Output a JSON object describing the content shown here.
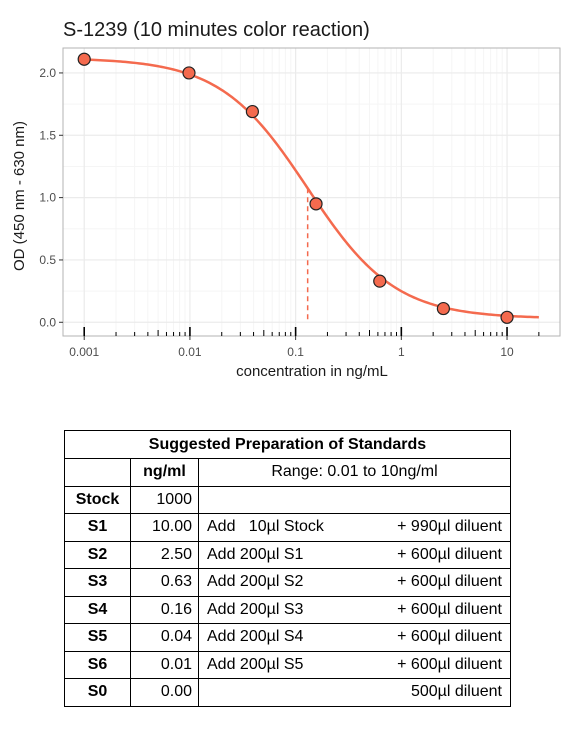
{
  "chart_data": {
    "type": "scatter",
    "title": "S-1239 (10 minutes color reaction)",
    "xlabel": "concentration in ng/mL",
    "ylabel": "OD (450 nm - 630 nm)",
    "x_scale": "log",
    "xlim": [
      0.001,
      20
    ],
    "ylim": [
      0,
      2.2
    ],
    "x_ticks": [
      0.001,
      0.01,
      0.1,
      1,
      10
    ],
    "x_tick_labels": [
      "0.001",
      "0.01",
      "0.1",
      "1",
      "10"
    ],
    "y_ticks": [
      0,
      0.5,
      1,
      1.5,
      2
    ],
    "y_tick_labels": [
      "0.0",
      "0.5",
      "1.0",
      "1.5",
      "2.0"
    ],
    "grid": true,
    "legend": "none",
    "points": {
      "x": [
        0.001,
        0.0098,
        0.039,
        0.156,
        0.625,
        2.5,
        10
      ],
      "y": [
        2.11,
        2.0,
        1.69,
        0.95,
        0.33,
        0.11,
        0.04
      ]
    },
    "curve": {
      "type": "4PL",
      "bottom": 0.03,
      "top": 2.12,
      "ec50": 0.13,
      "hill": 1.05,
      "x_range": [
        0.001,
        20
      ]
    },
    "reference_line": {
      "x": 0.13,
      "style": "dashed",
      "to_curve": true
    },
    "colors": {
      "curve": "#f46a4e",
      "point_fill": "#f46a4e",
      "point_stroke": "#222222",
      "reference": "#f46a4e",
      "grid_major": "#ebebeb",
      "grid_minor": "#f5f5f5",
      "panel_border": "#b3b3b3"
    }
  },
  "table": {
    "title": "Suggested Preparation of Standards",
    "header": {
      "conc": "ng/ml",
      "range": "Range: 0.01 to 10ng/ml"
    },
    "rows": [
      {
        "label": "Stock",
        "conc": "1000",
        "prep": "",
        "diluent": ""
      },
      {
        "label": "S1",
        "conc": "10.00",
        "prep": "Add   10µl Stock",
        "diluent": "+ 990µl diluent"
      },
      {
        "label": "S2",
        "conc": "2.50",
        "prep": "Add 200µl S1",
        "diluent": "+ 600µl diluent"
      },
      {
        "label": "S3",
        "conc": "0.63",
        "prep": "Add 200µl S2",
        "diluent": "+ 600µl diluent"
      },
      {
        "label": "S4",
        "conc": "0.16",
        "prep": "Add 200µl S3",
        "diluent": "+ 600µl diluent"
      },
      {
        "label": "S5",
        "conc": "0.04",
        "prep": "Add 200µl S4",
        "diluent": "+ 600µl diluent"
      },
      {
        "label": "S6",
        "conc": "0.01",
        "prep": "Add 200µl S5",
        "diluent": "+ 600µl diluent"
      },
      {
        "label": "S0",
        "conc": "0.00",
        "prep": "",
        "diluent": "500µl diluent"
      }
    ]
  }
}
